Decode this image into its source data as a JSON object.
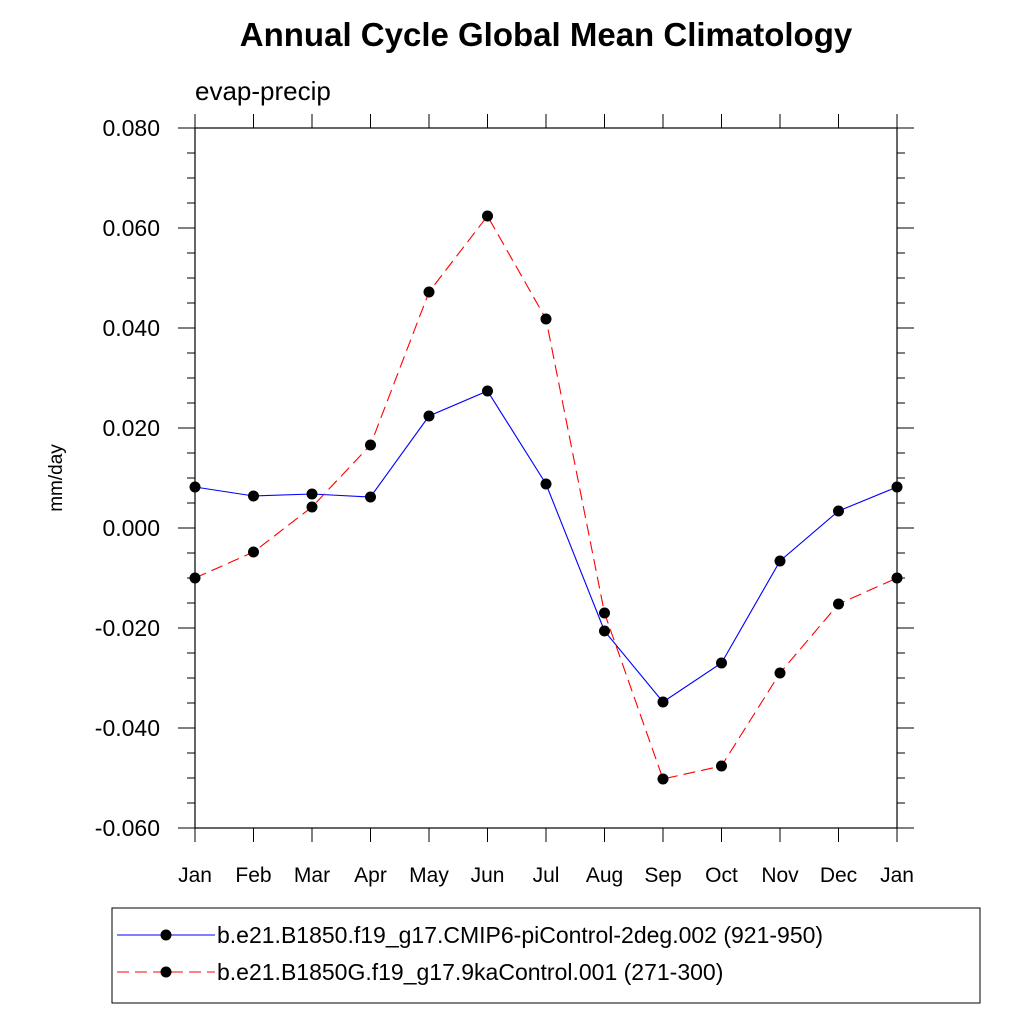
{
  "chart_data": {
    "type": "line",
    "title": "Annual Cycle Global Mean Climatology",
    "subtitle": "evap-precip",
    "xlabel": "",
    "ylabel": "mm/day",
    "ylim": [
      -0.06,
      0.08
    ],
    "yticks": [
      "0.080",
      "0.060",
      "0.040",
      "0.020",
      "0.000",
      "-0.020",
      "-0.040",
      "-0.060"
    ],
    "ytick_values": [
      0.08,
      0.06,
      0.04,
      0.02,
      0.0,
      -0.02,
      -0.04,
      -0.06
    ],
    "categories": [
      "Jan",
      "Feb",
      "Mar",
      "Apr",
      "May",
      "Jun",
      "Jul",
      "Aug",
      "Sep",
      "Oct",
      "Nov",
      "Dec",
      "Jan"
    ],
    "legend_position": "bottom",
    "series": [
      {
        "name": "b.e21.B1850.f19_g17.CMIP6-piControl-2deg.002 (921-950)",
        "color": "#0000ff",
        "dash": "solid",
        "values": [
          0.0082,
          0.0064,
          0.0068,
          0.0062,
          0.0224,
          0.0274,
          0.0088,
          -0.0206,
          -0.0348,
          -0.027,
          -0.0066,
          0.0034,
          0.0082
        ]
      },
      {
        "name": "b.e21.B1850G.f19_g17.9kaControl.001 (271-300)",
        "color": "#ff0000",
        "dash": "dashed",
        "values": [
          -0.01,
          -0.0048,
          0.0042,
          0.0166,
          0.0472,
          0.0624,
          0.0418,
          -0.017,
          -0.0502,
          -0.0476,
          -0.029,
          -0.0152,
          -0.01
        ]
      }
    ]
  }
}
